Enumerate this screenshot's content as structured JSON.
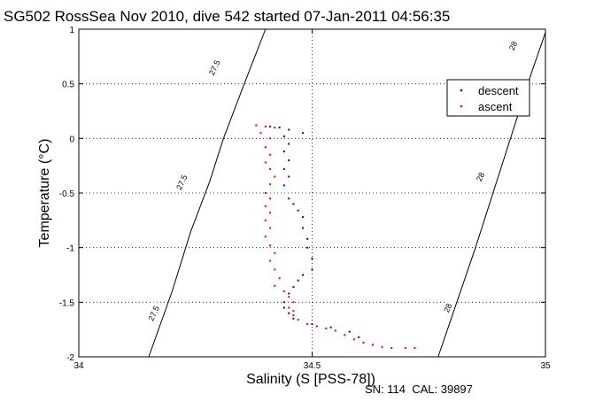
{
  "chart_data": {
    "type": "scatter",
    "title": "SG502 RossSea Nov 2010, dive 542 started 07-Jan-2011 04:56:35",
    "xlabel": "Salinity (S [PSS-78])",
    "ylabel": "Temperature (°C)",
    "xlim": [
      34,
      35
    ],
    "ylim": [
      -2,
      1
    ],
    "x_ticks": [
      "34",
      "34.5",
      "35"
    ],
    "y_ticks": [
      "1",
      "0.5",
      "0",
      "-0.5",
      "-1",
      "-1.5",
      "-2"
    ],
    "grid": true,
    "legend": "top-right",
    "series": [
      {
        "name": "descent",
        "color": "#0000ff",
        "points": [
          [
            34.41,
            0.11
          ],
          [
            34.43,
            0.1
          ],
          [
            34.45,
            0.08
          ],
          [
            34.48,
            0.05
          ],
          [
            34.44,
            0.02
          ],
          [
            34.45,
            -0.05
          ],
          [
            34.44,
            -0.12
          ],
          [
            34.45,
            -0.2
          ],
          [
            34.44,
            -0.28
          ],
          [
            34.45,
            -0.35
          ],
          [
            34.44,
            -0.43
          ],
          [
            34.45,
            -0.55
          ],
          [
            34.46,
            -0.6
          ],
          [
            34.47,
            -0.66
          ],
          [
            34.48,
            -0.72
          ],
          [
            34.48,
            -0.82
          ],
          [
            34.49,
            -0.92
          ],
          [
            34.49,
            -1.0
          ],
          [
            34.5,
            -1.1
          ],
          [
            34.5,
            -1.2
          ],
          [
            34.48,
            -1.25
          ],
          [
            34.47,
            -1.3
          ],
          [
            34.46,
            -1.36
          ],
          [
            34.45,
            -1.42
          ],
          [
            34.44,
            -1.5
          ],
          [
            34.44,
            -1.55
          ],
          [
            34.45,
            -1.6
          ],
          [
            34.46,
            -1.65
          ],
          [
            34.5,
            -1.7
          ],
          [
            34.54,
            -1.73
          ],
          [
            34.58,
            -1.77
          ],
          [
            34.6,
            -1.82
          ]
        ]
      },
      {
        "name": "ascent",
        "color": "#ff0000",
        "points": [
          [
            34.38,
            0.12
          ],
          [
            34.4,
            0.11
          ],
          [
            34.42,
            0.1
          ],
          [
            34.39,
            0.05
          ],
          [
            34.41,
            0.0
          ],
          [
            34.4,
            -0.08
          ],
          [
            34.41,
            -0.15
          ],
          [
            34.4,
            -0.22
          ],
          [
            34.41,
            -0.28
          ],
          [
            34.42,
            -0.35
          ],
          [
            34.41,
            -0.42
          ],
          [
            34.4,
            -0.5
          ],
          [
            34.41,
            -0.55
          ],
          [
            34.4,
            -0.62
          ],
          [
            34.41,
            -0.68
          ],
          [
            34.4,
            -0.75
          ],
          [
            34.41,
            -0.82
          ],
          [
            34.4,
            -0.9
          ],
          [
            34.41,
            -0.98
          ],
          [
            34.42,
            -1.05
          ],
          [
            34.41,
            -1.12
          ],
          [
            34.42,
            -1.2
          ],
          [
            34.43,
            -1.28
          ],
          [
            34.42,
            -1.35
          ],
          [
            34.44,
            -1.4
          ],
          [
            34.45,
            -1.45
          ],
          [
            34.46,
            -1.5
          ],
          [
            34.45,
            -1.55
          ],
          [
            34.46,
            -1.58
          ],
          [
            34.46,
            -1.62
          ],
          [
            34.47,
            -1.66
          ],
          [
            34.49,
            -1.7
          ],
          [
            34.51,
            -1.72
          ],
          [
            34.53,
            -1.74
          ],
          [
            34.55,
            -1.76
          ],
          [
            34.57,
            -1.8
          ],
          [
            34.59,
            -1.84
          ],
          [
            34.61,
            -1.87
          ],
          [
            34.63,
            -1.89
          ],
          [
            34.65,
            -1.91
          ],
          [
            34.67,
            -1.92
          ],
          [
            34.7,
            -1.92
          ],
          [
            34.72,
            -1.92
          ]
        ]
      }
    ],
    "contours": [
      {
        "label": "27.5",
        "points": [
          [
            34.15,
            -2
          ],
          [
            34.2,
            -1.4
          ],
          [
            34.24,
            -0.85
          ],
          [
            34.28,
            -0.4
          ],
          [
            34.31,
            0.0
          ],
          [
            34.35,
            0.45
          ],
          [
            34.38,
            0.78
          ],
          [
            34.4,
            1.0
          ]
        ]
      },
      {
        "label": "28",
        "points": [
          [
            34.77,
            -2
          ],
          [
            34.81,
            -1.5
          ],
          [
            34.85,
            -1.0
          ],
          [
            34.88,
            -0.6
          ],
          [
            34.91,
            -0.2
          ],
          [
            34.94,
            0.2
          ],
          [
            34.97,
            0.6
          ],
          [
            35.0,
            0.97
          ]
        ]
      }
    ],
    "contour_labels": [
      {
        "text": "27.5",
        "x": 34.29,
        "y": 0.65,
        "angle": -65
      },
      {
        "text": "27.5",
        "x": 34.22,
        "y": -0.4,
        "angle": -65
      },
      {
        "text": "27.5",
        "x": 34.16,
        "y": -1.6,
        "angle": -65
      },
      {
        "text": "28",
        "x": 34.93,
        "y": 0.85,
        "angle": -65
      },
      {
        "text": "28",
        "x": 34.86,
        "y": -0.35,
        "angle": -65
      },
      {
        "text": "28",
        "x": 34.79,
        "y": -1.55,
        "angle": -65
      }
    ]
  },
  "footer": "SN: 114  CAL: 39897"
}
